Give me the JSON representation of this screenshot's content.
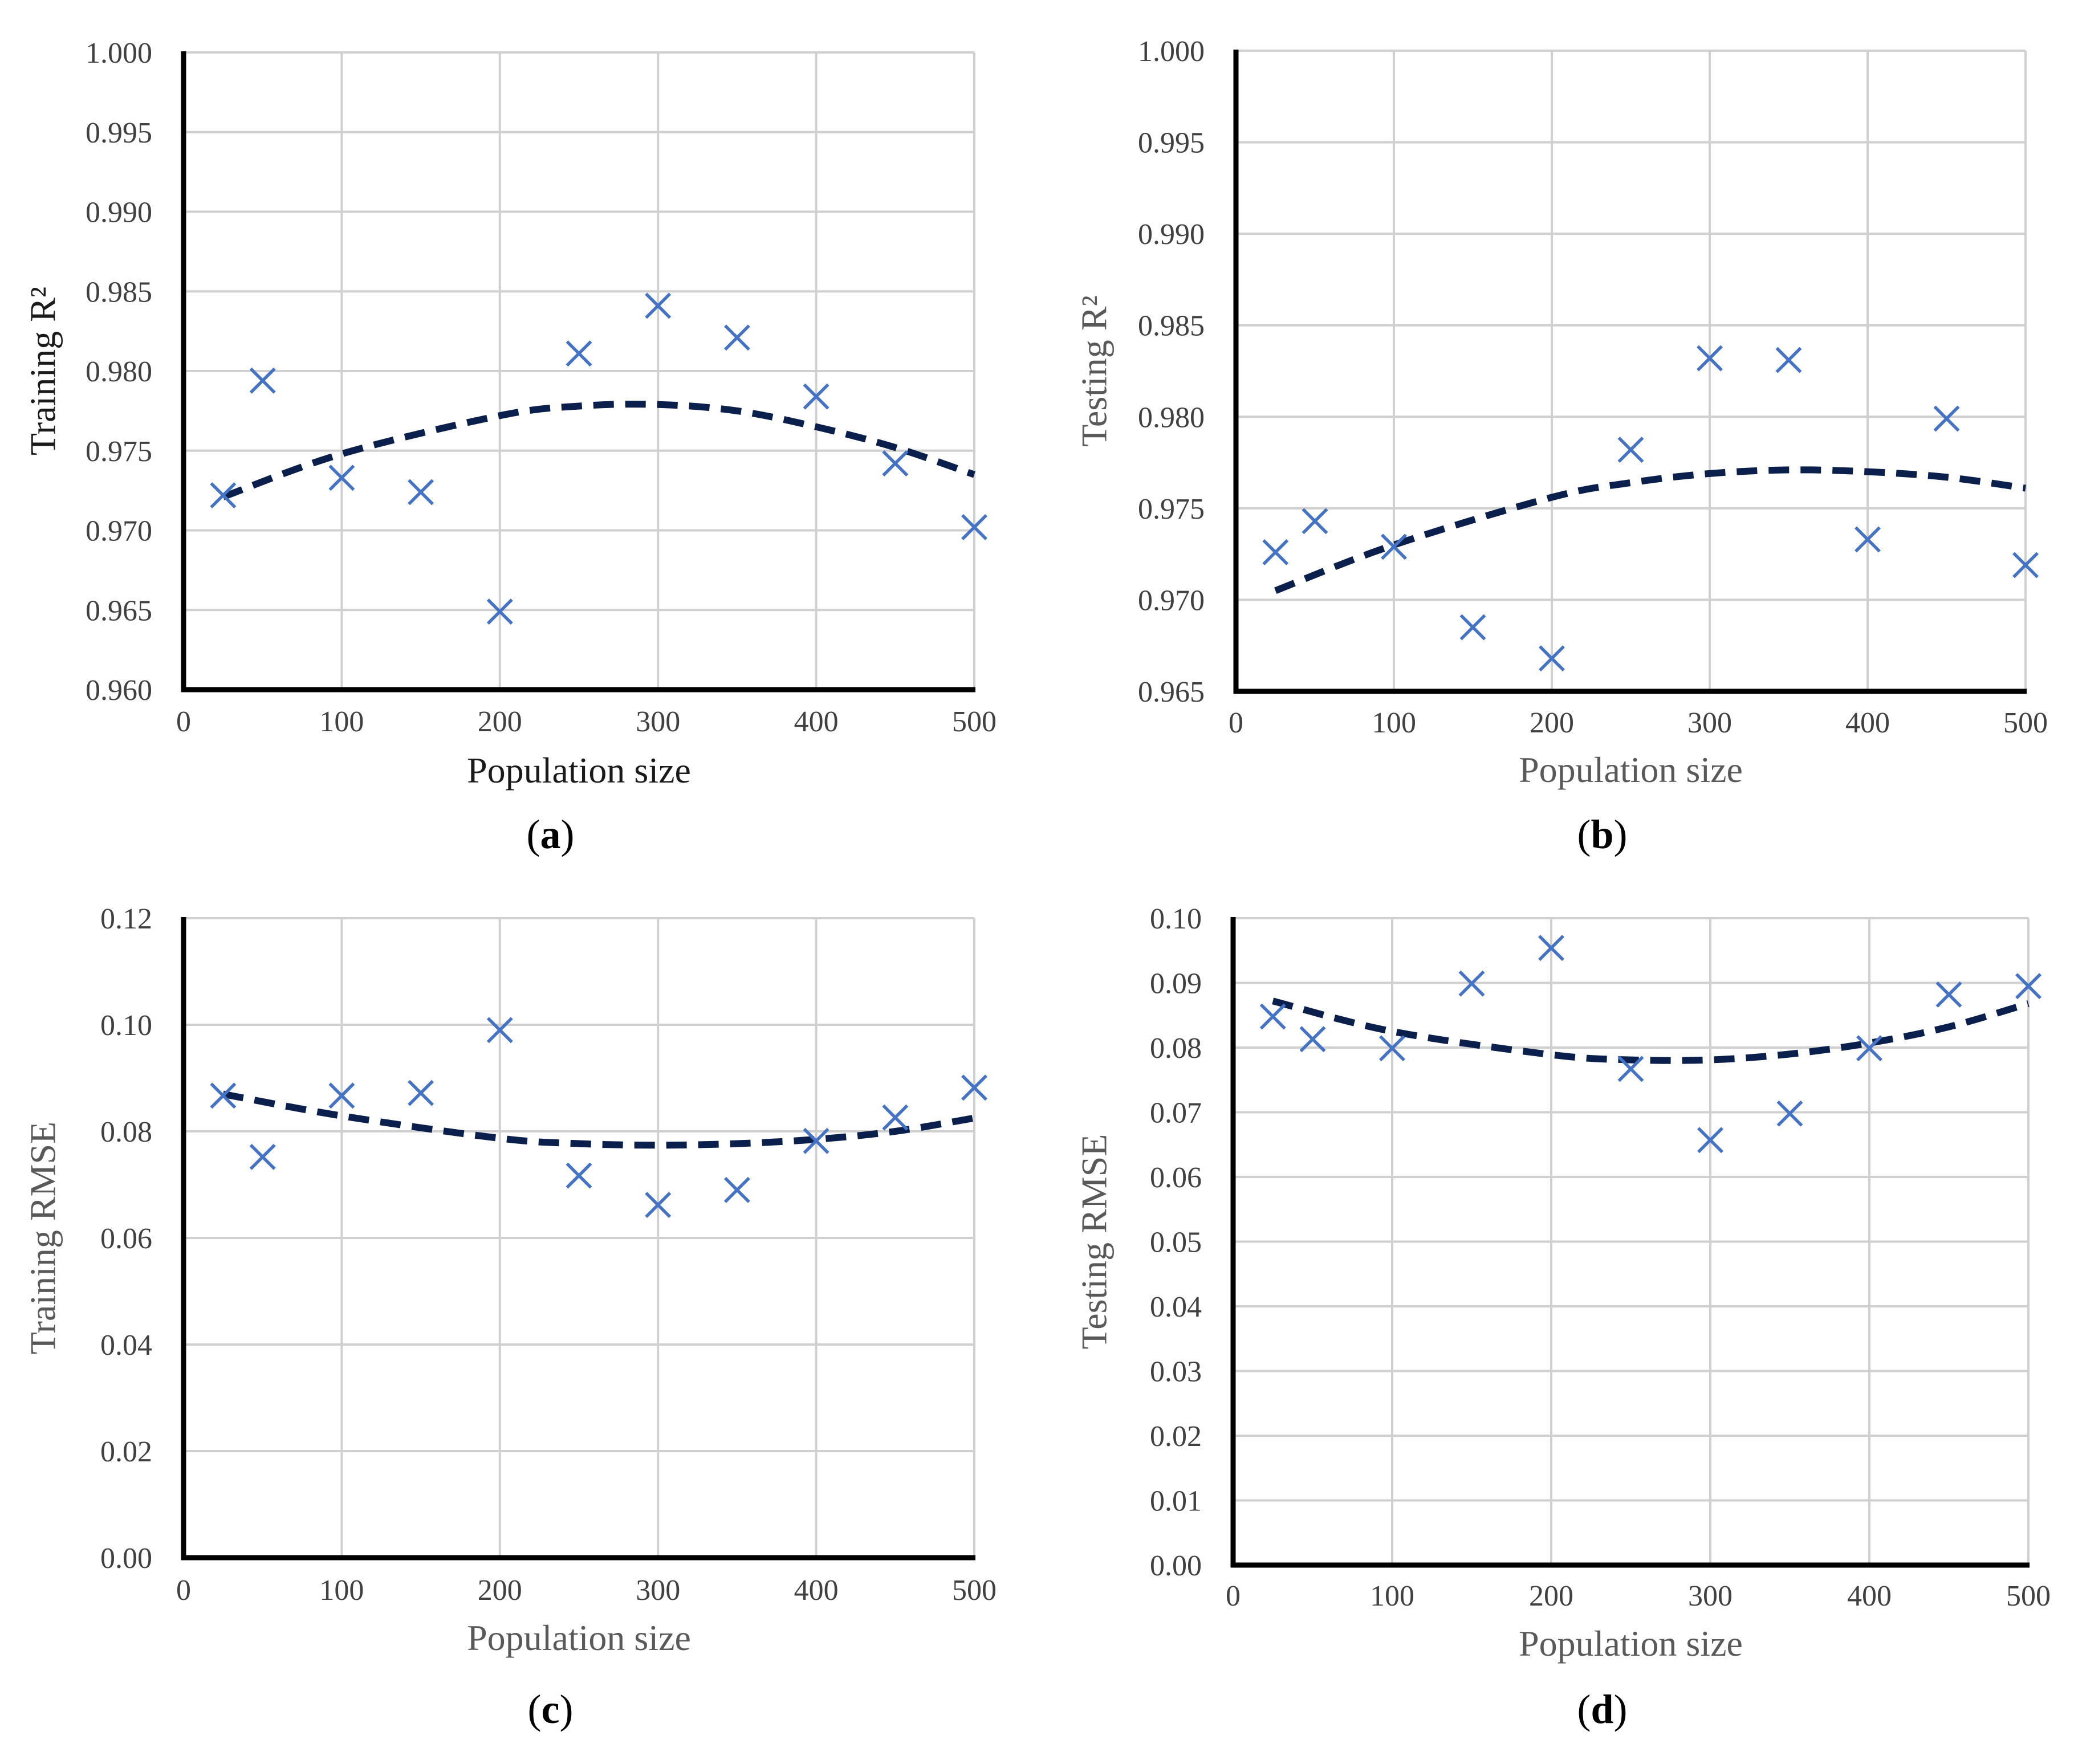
{
  "colors": {
    "marker": "#4472C4",
    "trend": "#0B1F4D",
    "grid": "#D0D0D0",
    "axis": "#000000"
  },
  "chart_data": [
    {
      "panel": "(a)",
      "panel_letter": "a",
      "type": "scatter",
      "title": "",
      "xlabel": "Population size",
      "ylabel": "Training R²",
      "xlim": [
        0,
        500
      ],
      "ylim": [
        0.96,
        1.0
      ],
      "xticks": [
        0,
        100,
        200,
        300,
        400,
        500
      ],
      "xtick_labels": [
        "0",
        "100",
        "200",
        "300",
        "400",
        "500"
      ],
      "yticks": [
        0.96,
        0.965,
        0.97,
        0.975,
        0.98,
        0.985,
        0.99,
        0.995,
        1.0
      ],
      "ytick_labels": [
        "0.960",
        "0.965",
        "0.970",
        "0.975",
        "0.980",
        "0.985",
        "0.990",
        "0.995",
        "1.000"
      ],
      "grid": true,
      "x": [
        25,
        50,
        100,
        150,
        200,
        250,
        300,
        350,
        400,
        450,
        500
      ],
      "y": [
        0.9722,
        0.9794,
        0.9733,
        0.9724,
        0.9649,
        0.9811,
        0.9841,
        0.9821,
        0.9784,
        0.9742,
        0.9702
      ],
      "trendline": {
        "style": "dashed",
        "x": [
          25,
          100,
          200,
          250,
          300,
          350,
          400,
          450,
          500
        ],
        "y": [
          0.9721,
          0.9748,
          0.9772,
          0.9778,
          0.9779,
          0.9775,
          0.9765,
          0.9752,
          0.9735
        ]
      }
    },
    {
      "panel": "(b)",
      "panel_letter": "b",
      "type": "scatter",
      "title": "",
      "xlabel": "Population size",
      "ylabel": "Testing R²",
      "xlim": [
        0,
        500
      ],
      "ylim": [
        0.965,
        1.0
      ],
      "xticks": [
        0,
        100,
        200,
        300,
        400,
        500
      ],
      "xtick_labels": [
        "0",
        "100",
        "200",
        "300",
        "400",
        "500"
      ],
      "yticks": [
        0.965,
        0.97,
        0.975,
        0.98,
        0.985,
        0.99,
        0.995,
        1.0
      ],
      "ytick_labels": [
        "0.965",
        "0.970",
        "0.975",
        "0.980",
        "0.985",
        "0.990",
        "0.995",
        "1.000"
      ],
      "grid": true,
      "x": [
        25,
        50,
        100,
        150,
        200,
        250,
        300,
        350,
        400,
        450,
        500
      ],
      "y": [
        0.9726,
        0.9743,
        0.9729,
        0.9685,
        0.9668,
        0.9782,
        0.9832,
        0.9831,
        0.9733,
        0.9799,
        0.9719
      ],
      "trendline": {
        "style": "dashed",
        "x": [
          25,
          100,
          200,
          250,
          300,
          350,
          400,
          450,
          500
        ],
        "y": [
          0.9705,
          0.973,
          0.9756,
          0.9764,
          0.9769,
          0.9771,
          0.977,
          0.9767,
          0.9761
        ]
      }
    },
    {
      "panel": "(c)",
      "panel_letter": "c",
      "type": "scatter",
      "title": "",
      "xlabel": "Population size",
      "ylabel": "Training RMSE",
      "xlim": [
        0,
        500
      ],
      "ylim": [
        0.0,
        0.12
      ],
      "xticks": [
        0,
        100,
        200,
        300,
        400,
        500
      ],
      "xtick_labels": [
        "0",
        "100",
        "200",
        "300",
        "400",
        "500"
      ],
      "yticks": [
        0.0,
        0.02,
        0.04,
        0.06,
        0.08,
        0.1,
        0.12
      ],
      "ytick_labels": [
        "0.00",
        "0.02",
        "0.04",
        "0.06",
        "0.08",
        "0.10",
        "0.12"
      ],
      "grid": true,
      "x": [
        25,
        50,
        100,
        150,
        200,
        250,
        300,
        350,
        400,
        450,
        500
      ],
      "y": [
        0.0867,
        0.0752,
        0.0867,
        0.0872,
        0.099,
        0.0717,
        0.0662,
        0.069,
        0.0782,
        0.0826,
        0.0882
      ],
      "trendline": {
        "style": "dashed",
        "x": [
          25,
          100,
          200,
          250,
          300,
          350,
          400,
          450,
          500
        ],
        "y": [
          0.087,
          0.0829,
          0.0787,
          0.0777,
          0.0774,
          0.0777,
          0.0785,
          0.08,
          0.0825
        ]
      }
    },
    {
      "panel": "(d)",
      "panel_letter": "d",
      "type": "scatter",
      "title": "",
      "xlabel": "Population size",
      "ylabel": "Testing RMSE",
      "xlim": [
        0,
        500
      ],
      "ylim": [
        0.0,
        0.1
      ],
      "xticks": [
        0,
        100,
        200,
        300,
        400,
        500
      ],
      "xtick_labels": [
        "0",
        "100",
        "200",
        "300",
        "400",
        "500"
      ],
      "yticks": [
        0.0,
        0.01,
        0.02,
        0.03,
        0.04,
        0.05,
        0.06,
        0.07,
        0.08,
        0.09,
        0.1
      ],
      "ytick_labels": [
        "0.00",
        "0.01",
        "0.02",
        "0.03",
        "0.04",
        "0.05",
        "0.06",
        "0.07",
        "0.08",
        "0.09",
        "0.10"
      ],
      "grid": true,
      "x": [
        25,
        50,
        100,
        150,
        200,
        250,
        300,
        350,
        400,
        450,
        500
      ],
      "y": [
        0.0848,
        0.0813,
        0.0799,
        0.0899,
        0.0954,
        0.0767,
        0.0657,
        0.0698,
        0.0799,
        0.0882,
        0.0895
      ],
      "trendline": {
        "style": "dashed",
        "x": [
          25,
          100,
          200,
          250,
          300,
          350,
          400,
          450,
          500
        ],
        "y": [
          0.0872,
          0.0825,
          0.0789,
          0.0781,
          0.0781,
          0.079,
          0.0807,
          0.0832,
          0.0868
        ]
      }
    }
  ]
}
